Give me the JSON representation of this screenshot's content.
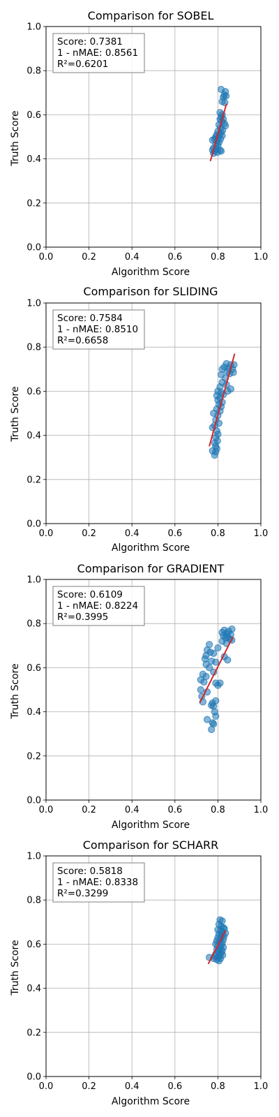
{
  "chart_data": [
    {
      "type": "scatter",
      "title": "Comparison for SOBEL",
      "xlabel": "Algorithm Score",
      "ylabel": "Truth Score",
      "xlim": [
        0,
        1
      ],
      "ylim": [
        0,
        1
      ],
      "xticks": [
        "0.0",
        "0.2",
        "0.4",
        "0.6",
        "0.8",
        "1.0"
      ],
      "yticks": [
        "0.0",
        "0.2",
        "0.4",
        "0.6",
        "0.8",
        "1.0"
      ],
      "grid": true,
      "stats_box": [
        "Score: 0.7381",
        "1 - nMAE: 0.8561",
        "R²=0.6201"
      ],
      "stats_box_position": "top-left",
      "fit_line": {
        "x": [
          0.765,
          0.84
        ],
        "y": [
          0.39,
          0.65
        ]
      },
      "points": [
        {
          "x": 0.815,
          "y": 0.715
        },
        {
          "x": 0.835,
          "y": 0.705
        },
        {
          "x": 0.83,
          "y": 0.69
        },
        {
          "x": 0.825,
          "y": 0.68
        },
        {
          "x": 0.838,
          "y": 0.685
        },
        {
          "x": 0.82,
          "y": 0.66
        },
        {
          "x": 0.832,
          "y": 0.655
        },
        {
          "x": 0.81,
          "y": 0.61
        },
        {
          "x": 0.82,
          "y": 0.6
        },
        {
          "x": 0.815,
          "y": 0.59
        },
        {
          "x": 0.81,
          "y": 0.58
        },
        {
          "x": 0.825,
          "y": 0.58
        },
        {
          "x": 0.818,
          "y": 0.57
        },
        {
          "x": 0.83,
          "y": 0.56
        },
        {
          "x": 0.805,
          "y": 0.555
        },
        {
          "x": 0.835,
          "y": 0.55
        },
        {
          "x": 0.812,
          "y": 0.54
        },
        {
          "x": 0.822,
          "y": 0.53
        },
        {
          "x": 0.8,
          "y": 0.525
        },
        {
          "x": 0.815,
          "y": 0.52
        },
        {
          "x": 0.808,
          "y": 0.51
        },
        {
          "x": 0.795,
          "y": 0.51
        },
        {
          "x": 0.82,
          "y": 0.505
        },
        {
          "x": 0.79,
          "y": 0.5
        },
        {
          "x": 0.8,
          "y": 0.495
        },
        {
          "x": 0.812,
          "y": 0.49
        },
        {
          "x": 0.785,
          "y": 0.49
        },
        {
          "x": 0.775,
          "y": 0.485
        },
        {
          "x": 0.795,
          "y": 0.48
        },
        {
          "x": 0.805,
          "y": 0.475
        },
        {
          "x": 0.79,
          "y": 0.465
        },
        {
          "x": 0.8,
          "y": 0.46
        },
        {
          "x": 0.78,
          "y": 0.45
        },
        {
          "x": 0.795,
          "y": 0.445
        },
        {
          "x": 0.81,
          "y": 0.44
        },
        {
          "x": 0.775,
          "y": 0.44
        },
        {
          "x": 0.785,
          "y": 0.435
        },
        {
          "x": 0.798,
          "y": 0.43
        },
        {
          "x": 0.815,
          "y": 0.435
        },
        {
          "x": 0.78,
          "y": 0.425
        }
      ]
    },
    {
      "type": "scatter",
      "title": "Comparison for SLIDING",
      "xlabel": "Algorithm Score",
      "ylabel": "Truth Score",
      "xlim": [
        0,
        1
      ],
      "ylim": [
        0,
        1
      ],
      "xticks": [
        "0.0",
        "0.2",
        "0.4",
        "0.6",
        "0.8",
        "1.0"
      ],
      "yticks": [
        "0.0",
        "0.2",
        "0.4",
        "0.6",
        "0.8",
        "1.0"
      ],
      "grid": true,
      "stats_box": [
        "Score: 0.7584",
        "1 - nMAE: 0.8510",
        "R²=0.6658"
      ],
      "stats_box_position": "top-left",
      "fit_line": {
        "x": [
          0.76,
          0.878
        ],
        "y": [
          0.35,
          0.77
        ]
      },
      "points": [
        {
          "x": 0.84,
          "y": 0.725
        },
        {
          "x": 0.86,
          "y": 0.72
        },
        {
          "x": 0.875,
          "y": 0.72
        },
        {
          "x": 0.83,
          "y": 0.71
        },
        {
          "x": 0.85,
          "y": 0.705
        },
        {
          "x": 0.82,
          "y": 0.7
        },
        {
          "x": 0.868,
          "y": 0.7
        },
        {
          "x": 0.845,
          "y": 0.69
        },
        {
          "x": 0.872,
          "y": 0.685
        },
        {
          "x": 0.855,
          "y": 0.68
        },
        {
          "x": 0.815,
          "y": 0.675
        },
        {
          "x": 0.835,
          "y": 0.66
        },
        {
          "x": 0.82,
          "y": 0.64
        },
        {
          "x": 0.84,
          "y": 0.63
        },
        {
          "x": 0.81,
          "y": 0.62
        },
        {
          "x": 0.86,
          "y": 0.61
        },
        {
          "x": 0.845,
          "y": 0.6
        },
        {
          "x": 0.8,
          "y": 0.6
        },
        {
          "x": 0.815,
          "y": 0.595
        },
        {
          "x": 0.825,
          "y": 0.585
        },
        {
          "x": 0.795,
          "y": 0.58
        },
        {
          "x": 0.81,
          "y": 0.57
        },
        {
          "x": 0.8,
          "y": 0.56
        },
        {
          "x": 0.82,
          "y": 0.55
        },
        {
          "x": 0.805,
          "y": 0.54
        },
        {
          "x": 0.815,
          "y": 0.53
        },
        {
          "x": 0.795,
          "y": 0.52
        },
        {
          "x": 0.81,
          "y": 0.51
        },
        {
          "x": 0.78,
          "y": 0.5
        },
        {
          "x": 0.8,
          "y": 0.49
        },
        {
          "x": 0.79,
          "y": 0.47
        },
        {
          "x": 0.805,
          "y": 0.455
        },
        {
          "x": 0.785,
          "y": 0.445
        },
        {
          "x": 0.775,
          "y": 0.435
        },
        {
          "x": 0.795,
          "y": 0.42
        },
        {
          "x": 0.8,
          "y": 0.405
        },
        {
          "x": 0.79,
          "y": 0.39
        },
        {
          "x": 0.798,
          "y": 0.375
        },
        {
          "x": 0.785,
          "y": 0.365
        },
        {
          "x": 0.79,
          "y": 0.35
        },
        {
          "x": 0.795,
          "y": 0.34
        },
        {
          "x": 0.775,
          "y": 0.33
        },
        {
          "x": 0.79,
          "y": 0.325
        },
        {
          "x": 0.785,
          "y": 0.31
        }
      ]
    },
    {
      "type": "scatter",
      "title": "Comparison for GRADIENT",
      "xlabel": "Algorithm Score",
      "ylabel": "Truth Score",
      "xlim": [
        0,
        1
      ],
      "ylim": [
        0,
        1
      ],
      "xticks": [
        "0.0",
        "0.2",
        "0.4",
        "0.6",
        "0.8",
        "1.0"
      ],
      "yticks": [
        "0.0",
        "0.2",
        "0.4",
        "0.6",
        "0.8",
        "1.0"
      ],
      "grid": true,
      "stats_box": [
        "Score: 0.6109",
        "1 - nMAE: 0.8224",
        "R²=0.3995"
      ],
      "stats_box_position": "top-left",
      "fit_line": {
        "x": [
          0.715,
          0.87
        ],
        "y": [
          0.44,
          0.74
        ]
      },
      "points": [
        {
          "x": 0.865,
          "y": 0.775
        },
        {
          "x": 0.83,
          "y": 0.77
        },
        {
          "x": 0.85,
          "y": 0.765
        },
        {
          "x": 0.82,
          "y": 0.76
        },
        {
          "x": 0.84,
          "y": 0.755
        },
        {
          "x": 0.86,
          "y": 0.75
        },
        {
          "x": 0.825,
          "y": 0.745
        },
        {
          "x": 0.845,
          "y": 0.74
        },
        {
          "x": 0.835,
          "y": 0.735
        },
        {
          "x": 0.855,
          "y": 0.73
        },
        {
          "x": 0.865,
          "y": 0.725
        },
        {
          "x": 0.82,
          "y": 0.72
        },
        {
          "x": 0.84,
          "y": 0.71
        },
        {
          "x": 0.76,
          "y": 0.705
        },
        {
          "x": 0.8,
          "y": 0.69
        },
        {
          "x": 0.75,
          "y": 0.68
        },
        {
          "x": 0.765,
          "y": 0.67
        },
        {
          "x": 0.78,
          "y": 0.665
        },
        {
          "x": 0.745,
          "y": 0.655
        },
        {
          "x": 0.83,
          "y": 0.65
        },
        {
          "x": 0.74,
          "y": 0.64
        },
        {
          "x": 0.845,
          "y": 0.635
        },
        {
          "x": 0.77,
          "y": 0.63
        },
        {
          "x": 0.79,
          "y": 0.625
        },
        {
          "x": 0.745,
          "y": 0.615
        },
        {
          "x": 0.76,
          "y": 0.6
        },
        {
          "x": 0.78,
          "y": 0.58
        },
        {
          "x": 0.73,
          "y": 0.57
        },
        {
          "x": 0.745,
          "y": 0.56
        },
        {
          "x": 0.72,
          "y": 0.545
        },
        {
          "x": 0.735,
          "y": 0.535
        },
        {
          "x": 0.79,
          "y": 0.53
        },
        {
          "x": 0.81,
          "y": 0.53
        },
        {
          "x": 0.8,
          "y": 0.52
        },
        {
          "x": 0.72,
          "y": 0.5
        },
        {
          "x": 0.75,
          "y": 0.49
        },
        {
          "x": 0.725,
          "y": 0.47
        },
        {
          "x": 0.79,
          "y": 0.45
        },
        {
          "x": 0.73,
          "y": 0.445
        },
        {
          "x": 0.775,
          "y": 0.44
        },
        {
          "x": 0.77,
          "y": 0.43
        },
        {
          "x": 0.78,
          "y": 0.425
        },
        {
          "x": 0.785,
          "y": 0.4
        },
        {
          "x": 0.79,
          "y": 0.38
        },
        {
          "x": 0.75,
          "y": 0.365
        },
        {
          "x": 0.775,
          "y": 0.35
        },
        {
          "x": 0.78,
          "y": 0.345
        },
        {
          "x": 0.77,
          "y": 0.32
        }
      ]
    },
    {
      "type": "scatter",
      "title": "Comparison for SCHARR",
      "xlabel": "Algorithm Score",
      "ylabel": "Truth Score",
      "xlim": [
        0,
        1
      ],
      "ylim": [
        0,
        1
      ],
      "xticks": [
        "0.0",
        "0.2",
        "0.4",
        "0.6",
        "0.8",
        "1.0"
      ],
      "yticks": [
        "0.0",
        "0.2",
        "0.4",
        "0.6",
        "0.8",
        "1.0"
      ],
      "grid": true,
      "stats_box": [
        "Score: 0.5818",
        "1 - nMAE: 0.8338",
        "R²=0.3299"
      ],
      "stats_box_position": "top-left",
      "fit_line": {
        "x": [
          0.755,
          0.835
        ],
        "y": [
          0.51,
          0.66
        ]
      },
      "points": [
        {
          "x": 0.81,
          "y": 0.71
        },
        {
          "x": 0.82,
          "y": 0.705
        },
        {
          "x": 0.805,
          "y": 0.69
        },
        {
          "x": 0.815,
          "y": 0.68
        },
        {
          "x": 0.825,
          "y": 0.675
        },
        {
          "x": 0.83,
          "y": 0.67
        },
        {
          "x": 0.8,
          "y": 0.665
        },
        {
          "x": 0.812,
          "y": 0.66
        },
        {
          "x": 0.822,
          "y": 0.655
        },
        {
          "x": 0.835,
          "y": 0.65
        },
        {
          "x": 0.805,
          "y": 0.645
        },
        {
          "x": 0.818,
          "y": 0.64
        },
        {
          "x": 0.828,
          "y": 0.635
        },
        {
          "x": 0.8,
          "y": 0.63
        },
        {
          "x": 0.812,
          "y": 0.625
        },
        {
          "x": 0.825,
          "y": 0.62
        },
        {
          "x": 0.795,
          "y": 0.615
        },
        {
          "x": 0.808,
          "y": 0.61
        },
        {
          "x": 0.82,
          "y": 0.605
        },
        {
          "x": 0.79,
          "y": 0.6
        },
        {
          "x": 0.815,
          "y": 0.595
        },
        {
          "x": 0.8,
          "y": 0.59
        },
        {
          "x": 0.825,
          "y": 0.585
        },
        {
          "x": 0.81,
          "y": 0.58
        },
        {
          "x": 0.795,
          "y": 0.575
        },
        {
          "x": 0.82,
          "y": 0.57
        },
        {
          "x": 0.805,
          "y": 0.565
        },
        {
          "x": 0.815,
          "y": 0.56
        },
        {
          "x": 0.79,
          "y": 0.555
        },
        {
          "x": 0.808,
          "y": 0.55
        },
        {
          "x": 0.822,
          "y": 0.55
        },
        {
          "x": 0.785,
          "y": 0.545
        },
        {
          "x": 0.76,
          "y": 0.54
        },
        {
          "x": 0.8,
          "y": 0.54
        },
        {
          "x": 0.78,
          "y": 0.535
        },
        {
          "x": 0.812,
          "y": 0.535
        },
        {
          "x": 0.795,
          "y": 0.53
        },
        {
          "x": 0.805,
          "y": 0.525
        }
      ]
    }
  ]
}
